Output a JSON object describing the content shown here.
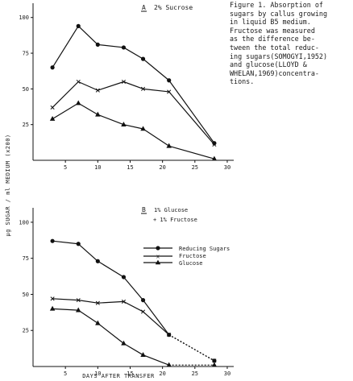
{
  "caption": "Figure 1. Absorption of\nsugars by callus growing\nin liquid B5 medium.\nFructose was measured\nas the difference be-\ntween the total reduc-\ning sugars(SOMOGYI,1952)\nand glucose(LLOYD &\nWHELAN,1969)concentra-\ntions.",
  "chart_data": [
    {
      "type": "line",
      "panel": "A",
      "title": "2% Sucrose",
      "xlabel": "",
      "ylabel": "µg SUGAR / ml MEDIUM (x200)",
      "xlim": [
        0,
        31
      ],
      "ylim": [
        0,
        110
      ],
      "xticks": [
        "5",
        "10",
        "15",
        "20",
        "25",
        "30"
      ],
      "yticks": [
        "25",
        "50",
        "75",
        "100"
      ],
      "grid": false,
      "series": [
        {
          "marker": "circle",
          "x": [
            3,
            7,
            10,
            14,
            17,
            21,
            28
          ],
          "values": [
            65,
            94,
            81,
            79,
            71,
            56,
            12
          ]
        },
        {
          "marker": "cross",
          "x": [
            3,
            7,
            10,
            14,
            17,
            21,
            28
          ],
          "values": [
            37,
            55,
            49,
            55,
            50,
            48,
            11
          ]
        },
        {
          "marker": "triangle",
          "x": [
            3,
            7,
            10,
            14,
            17,
            21,
            28
          ],
          "values": [
            29,
            40,
            32,
            25,
            22,
            10,
            1
          ]
        }
      ]
    },
    {
      "type": "line",
      "panel": "B",
      "title": "",
      "conditions": [
        "1% Glucose",
        "+ 1% Fructose"
      ],
      "xlabel": "DAYS AFTER TRANSFER",
      "ylabel": "µg SUGAR / ml MEDIUM (x200)",
      "xlim": [
        0,
        31
      ],
      "ylim": [
        0,
        110
      ],
      "xticks": [
        "5",
        "10",
        "15",
        "20",
        "25",
        "30"
      ],
      "yticks": [
        "25",
        "50",
        "75",
        "100"
      ],
      "grid": false,
      "legend_position": "right",
      "series": [
        {
          "name": "Reducing Sugars",
          "marker": "circle",
          "x": [
            3,
            7,
            10,
            14,
            17,
            21,
            28
          ],
          "values": [
            87,
            85,
            73,
            62,
            46,
            22,
            4
          ]
        },
        {
          "name": "Fructose",
          "marker": "cross",
          "x": [
            3,
            7,
            10,
            14,
            17,
            21,
            28
          ],
          "values": [
            47,
            46,
            44,
            45,
            38,
            22,
            4
          ]
        },
        {
          "name": "Glucose",
          "marker": "triangle",
          "x": [
            3,
            7,
            10,
            14,
            17,
            21,
            28
          ],
          "values": [
            40,
            39,
            30,
            16,
            8,
            1,
            1
          ]
        }
      ]
    }
  ]
}
